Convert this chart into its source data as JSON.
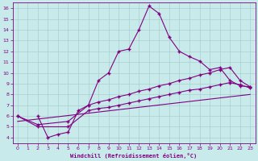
{
  "bg_color": "#c8eaea",
  "line_color": "#800080",
  "grid_color": "#a8d0d0",
  "xlabel": "Windchill (Refroidissement éolien,°C)",
  "xlim": [
    -0.5,
    23.5
  ],
  "ylim": [
    3.5,
    16.5
  ],
  "xticks": [
    0,
    1,
    2,
    3,
    4,
    5,
    6,
    7,
    8,
    9,
    10,
    11,
    12,
    13,
    14,
    15,
    16,
    17,
    18,
    19,
    20,
    21,
    22,
    23
  ],
  "yticks": [
    4,
    5,
    6,
    7,
    8,
    9,
    10,
    11,
    12,
    13,
    14,
    15,
    16
  ],
  "series1_x": [
    2,
    3,
    4,
    5,
    6,
    7,
    8,
    9,
    10,
    11,
    12,
    13,
    14,
    15,
    16,
    17,
    18,
    19,
    20,
    21,
    22,
    23
  ],
  "series1_y": [
    6.0,
    4.0,
    4.3,
    4.5,
    6.5,
    7.0,
    9.3,
    10.0,
    12.0,
    12.2,
    14.0,
    16.2,
    15.5,
    13.3,
    12.0,
    11.5,
    11.1,
    10.3,
    10.5,
    9.3,
    8.8,
    8.7
  ],
  "series2_x": [
    0,
    2,
    5,
    7,
    8,
    9,
    10,
    11,
    12,
    13,
    14,
    15,
    16,
    17,
    18,
    19,
    20,
    21,
    22,
    23
  ],
  "series2_y": [
    6.0,
    5.2,
    5.5,
    7.0,
    7.3,
    7.5,
    7.8,
    8.0,
    8.3,
    8.5,
    8.8,
    9.0,
    9.3,
    9.5,
    9.8,
    10.0,
    10.3,
    10.5,
    9.3,
    8.7
  ],
  "series3_x": [
    0,
    2,
    5,
    7,
    8,
    9,
    10,
    11,
    12,
    13,
    14,
    15,
    16,
    17,
    18,
    19,
    20,
    21,
    22,
    23
  ],
  "series3_y": [
    6.0,
    5.0,
    5.0,
    6.5,
    6.7,
    6.8,
    7.0,
    7.2,
    7.4,
    7.6,
    7.8,
    8.0,
    8.2,
    8.4,
    8.5,
    8.7,
    8.9,
    9.1,
    8.9,
    8.6
  ],
  "series4_x": [
    0,
    23
  ],
  "series4_y": [
    5.5,
    8.0
  ]
}
